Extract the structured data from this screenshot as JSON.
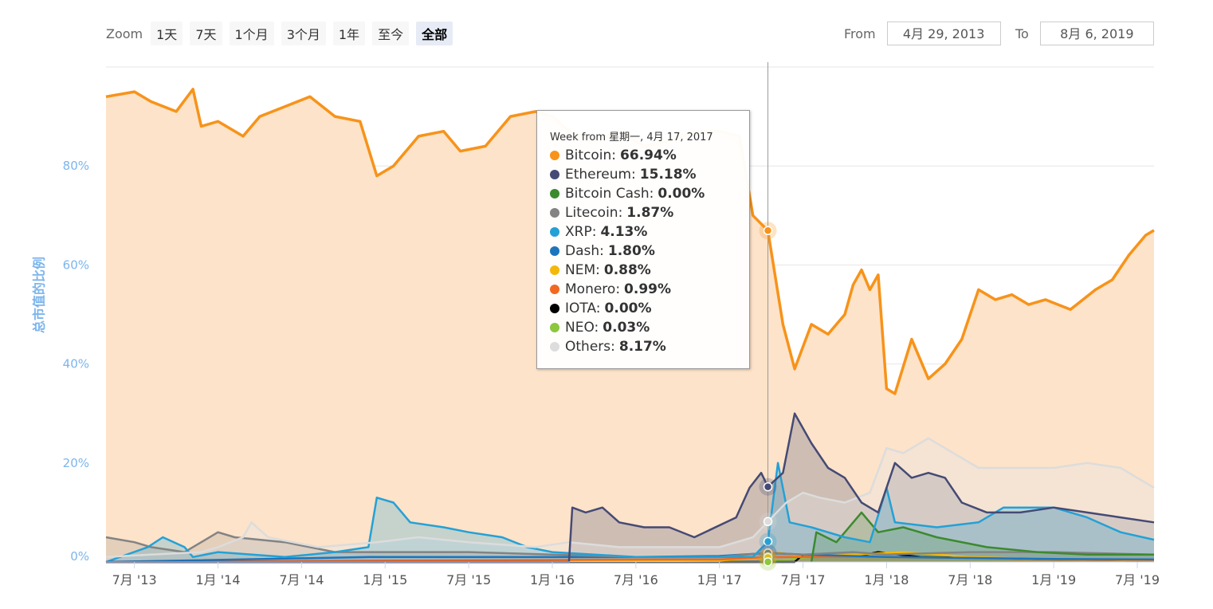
{
  "zoom": {
    "label": "Zoom",
    "buttons": [
      "1天",
      "7天",
      "1个月",
      "3个月",
      "1年",
      "至今",
      "全部"
    ],
    "active_index": 6
  },
  "range": {
    "from_label": "From",
    "from_value": "4月 29, 2013",
    "to_label": "To",
    "to_value": "8月 6, 2019"
  },
  "tooltip": {
    "header": "Week from 星期一, 4月 17, 2017",
    "items": [
      {
        "name": "Bitcoin",
        "value": "66.94%",
        "color": "#f7931a"
      },
      {
        "name": "Ethereum",
        "value": "15.18%",
        "color": "#454a75"
      },
      {
        "name": "Bitcoin Cash",
        "value": "0.00%",
        "color": "#3c8a2e"
      },
      {
        "name": "Litecoin",
        "value": "1.87%",
        "color": "#838383"
      },
      {
        "name": "XRP",
        "value": "4.13%",
        "color": "#23a1d6"
      },
      {
        "name": "Dash",
        "value": "1.80%",
        "color": "#1c75bc"
      },
      {
        "name": "NEM",
        "value": "0.88%",
        "color": "#f4b80b"
      },
      {
        "name": "Monero",
        "value": "0.99%",
        "color": "#f26822"
      },
      {
        "name": "IOTA",
        "value": "0.00%",
        "color": "#000000"
      },
      {
        "name": "NEO",
        "value": "0.03%",
        "color": "#8dc63f"
      },
      {
        "name": "Others",
        "value": "8.17%",
        "color": "#dddddd"
      }
    ]
  },
  "chart_data": {
    "type": "area",
    "ylabel": "总市值的比例",
    "ylim": [
      0,
      100
    ],
    "yticks": [
      0,
      20,
      40,
      60,
      80
    ],
    "ytick_labels": [
      "0%",
      "20%",
      "40%",
      "60%",
      "80%"
    ],
    "xlim": [
      2013.33,
      2019.6
    ],
    "xticks": [
      2013.5,
      2014.0,
      2014.5,
      2015.0,
      2015.5,
      2016.0,
      2016.5,
      2017.0,
      2017.5,
      2018.0,
      2018.5,
      2019.0,
      2019.5
    ],
    "xtick_labels": [
      "7月 '13",
      "1月 '14",
      "7月 '14",
      "1月 '15",
      "7月 '15",
      "1月 '16",
      "7月 '16",
      "1月 '17",
      "7月 '17",
      "1月 '18",
      "7月 '18",
      "1月 '19",
      "7月 '19"
    ],
    "crosshair_x": 2017.29,
    "grid": true,
    "series": [
      {
        "name": "Bitcoin",
        "color": "#f7931a",
        "fill": "#fde3c9",
        "points": [
          [
            2013.33,
            94
          ],
          [
            2013.5,
            95
          ],
          [
            2013.6,
            93
          ],
          [
            2013.75,
            91
          ],
          [
            2013.85,
            95.5
          ],
          [
            2013.9,
            88
          ],
          [
            2014.0,
            89
          ],
          [
            2014.15,
            86
          ],
          [
            2014.25,
            90
          ],
          [
            2014.4,
            92
          ],
          [
            2014.55,
            94
          ],
          [
            2014.7,
            90
          ],
          [
            2014.85,
            89
          ],
          [
            2014.95,
            78
          ],
          [
            2015.05,
            80
          ],
          [
            2015.1,
            82
          ],
          [
            2015.2,
            86
          ],
          [
            2015.35,
            87
          ],
          [
            2015.45,
            83
          ],
          [
            2015.6,
            84
          ],
          [
            2015.75,
            90
          ],
          [
            2015.9,
            91
          ],
          [
            2016.0,
            90
          ],
          [
            2016.1,
            87
          ],
          [
            2016.25,
            85
          ],
          [
            2016.4,
            87
          ],
          [
            2016.55,
            84
          ],
          [
            2016.7,
            85
          ],
          [
            2016.85,
            87
          ],
          [
            2017.0,
            87
          ],
          [
            2017.12,
            86
          ],
          [
            2017.2,
            70
          ],
          [
            2017.29,
            66.94
          ],
          [
            2017.38,
            48
          ],
          [
            2017.45,
            39
          ],
          [
            2017.55,
            48
          ],
          [
            2017.65,
            46
          ],
          [
            2017.75,
            50
          ],
          [
            2017.8,
            56
          ],
          [
            2017.85,
            59
          ],
          [
            2017.9,
            55
          ],
          [
            2017.95,
            58
          ],
          [
            2018.0,
            35
          ],
          [
            2018.05,
            34
          ],
          [
            2018.15,
            45
          ],
          [
            2018.25,
            37
          ],
          [
            2018.35,
            40
          ],
          [
            2018.45,
            45
          ],
          [
            2018.55,
            55
          ],
          [
            2018.65,
            53
          ],
          [
            2018.75,
            54
          ],
          [
            2018.85,
            52
          ],
          [
            2018.95,
            53
          ],
          [
            2019.1,
            51
          ],
          [
            2019.25,
            55
          ],
          [
            2019.35,
            57
          ],
          [
            2019.45,
            62
          ],
          [
            2019.55,
            66
          ],
          [
            2019.6,
            67
          ]
        ]
      },
      {
        "name": "Ethereum",
        "color": "#454a75",
        "fill": "rgba(69,74,117,0.25)",
        "points": [
          [
            2013.33,
            0
          ],
          [
            2016.1,
            0
          ],
          [
            2016.12,
            11
          ],
          [
            2016.2,
            10
          ],
          [
            2016.3,
            11
          ],
          [
            2016.4,
            8
          ],
          [
            2016.55,
            7
          ],
          [
            2016.7,
            7
          ],
          [
            2016.85,
            5
          ],
          [
            2017.1,
            9
          ],
          [
            2017.18,
            15
          ],
          [
            2017.25,
            18
          ],
          [
            2017.29,
            15.18
          ],
          [
            2017.38,
            18
          ],
          [
            2017.45,
            30
          ],
          [
            2017.55,
            24
          ],
          [
            2017.65,
            19
          ],
          [
            2017.75,
            17
          ],
          [
            2017.85,
            12
          ],
          [
            2017.95,
            10
          ],
          [
            2018.05,
            20
          ],
          [
            2018.15,
            17
          ],
          [
            2018.25,
            18
          ],
          [
            2018.35,
            17
          ],
          [
            2018.45,
            12
          ],
          [
            2018.6,
            10
          ],
          [
            2018.8,
            10
          ],
          [
            2019.0,
            11
          ],
          [
            2019.2,
            10
          ],
          [
            2019.4,
            9
          ],
          [
            2019.6,
            8
          ]
        ]
      },
      {
        "name": "Others",
        "color": "#dcdcdc",
        "fill": "rgba(230,230,230,0.35)",
        "points": [
          [
            2013.33,
            1
          ],
          [
            2013.6,
            1.5
          ],
          [
            2013.9,
            2
          ],
          [
            2014.0,
            3
          ],
          [
            2014.15,
            5
          ],
          [
            2014.2,
            8
          ],
          [
            2014.3,
            5
          ],
          [
            2014.6,
            3
          ],
          [
            2014.95,
            4
          ],
          [
            2015.2,
            5
          ],
          [
            2015.5,
            4
          ],
          [
            2015.9,
            3
          ],
          [
            2016.1,
            4
          ],
          [
            2016.4,
            3
          ],
          [
            2016.7,
            3
          ],
          [
            2017.0,
            3
          ],
          [
            2017.2,
            5
          ],
          [
            2017.29,
            8.17
          ],
          [
            2017.4,
            12
          ],
          [
            2017.5,
            14
          ],
          [
            2017.6,
            13
          ],
          [
            2017.75,
            12
          ],
          [
            2017.9,
            14
          ],
          [
            2018.0,
            23
          ],
          [
            2018.1,
            22
          ],
          [
            2018.25,
            25
          ],
          [
            2018.4,
            22
          ],
          [
            2018.55,
            19
          ],
          [
            2018.75,
            19
          ],
          [
            2019.0,
            19
          ],
          [
            2019.2,
            20
          ],
          [
            2019.4,
            19
          ],
          [
            2019.6,
            15
          ]
        ]
      },
      {
        "name": "XRP",
        "color": "#23a1d6",
        "fill": "rgba(35,161,214,0.25)",
        "points": [
          [
            2013.33,
            0
          ],
          [
            2013.58,
            3
          ],
          [
            2013.67,
            5
          ],
          [
            2013.8,
            3
          ],
          [
            2013.85,
            1
          ],
          [
            2014.0,
            2
          ],
          [
            2014.4,
            1
          ],
          [
            2014.7,
            2
          ],
          [
            2014.9,
            3
          ],
          [
            2014.95,
            13
          ],
          [
            2015.05,
            12
          ],
          [
            2015.15,
            8
          ],
          [
            2015.35,
            7
          ],
          [
            2015.5,
            6
          ],
          [
            2015.7,
            5
          ],
          [
            2015.85,
            3
          ],
          [
            2016.0,
            2
          ],
          [
            2016.5,
            1
          ],
          [
            2017.0,
            1
          ],
          [
            2017.2,
            1
          ],
          [
            2017.29,
            4.13
          ],
          [
            2017.35,
            20
          ],
          [
            2017.42,
            8
          ],
          [
            2017.55,
            7
          ],
          [
            2017.75,
            5
          ],
          [
            2017.9,
            4
          ],
          [
            2018.0,
            15
          ],
          [
            2018.05,
            8
          ],
          [
            2018.3,
            7
          ],
          [
            2018.55,
            8
          ],
          [
            2018.7,
            11
          ],
          [
            2019.0,
            11
          ],
          [
            2019.2,
            9
          ],
          [
            2019.4,
            6
          ],
          [
            2019.6,
            4.5
          ]
        ]
      },
      {
        "name": "Bitcoin Cash",
        "color": "#3c8a2e",
        "fill": "rgba(60,138,46,0.2)",
        "points": [
          [
            2017.55,
            0
          ],
          [
            2017.58,
            6
          ],
          [
            2017.7,
            4
          ],
          [
            2017.85,
            10
          ],
          [
            2017.95,
            6
          ],
          [
            2018.1,
            7
          ],
          [
            2018.3,
            5
          ],
          [
            2018.6,
            3
          ],
          [
            2018.9,
            2
          ],
          [
            2019.2,
            1.5
          ],
          [
            2019.6,
            1.5
          ]
        ]
      },
      {
        "name": "Litecoin",
        "color": "#838383",
        "fill": "rgba(131,131,131,0.2)",
        "points": [
          [
            2013.33,
            5
          ],
          [
            2013.5,
            4
          ],
          [
            2013.6,
            3
          ],
          [
            2013.8,
            2
          ],
          [
            2014.0,
            6
          ],
          [
            2014.1,
            5
          ],
          [
            2014.4,
            4
          ],
          [
            2014.7,
            2
          ],
          [
            2015.0,
            2
          ],
          [
            2015.5,
            2
          ],
          [
            2016.0,
            1.5
          ],
          [
            2016.5,
            1
          ],
          [
            2017.0,
            1
          ],
          [
            2017.29,
            1.87
          ],
          [
            2017.5,
            1.5
          ],
          [
            2017.8,
            2
          ],
          [
            2018.0,
            1.5
          ],
          [
            2018.5,
            2
          ],
          [
            2019.0,
            2
          ],
          [
            2019.6,
            1.5
          ]
        ]
      },
      {
        "name": "Dash",
        "color": "#1c75bc",
        "fill": "rgba(28,117,188,0.15)",
        "points": [
          [
            2013.33,
            0
          ],
          [
            2014.9,
            1
          ],
          [
            2015.5,
            1
          ],
          [
            2016.0,
            1
          ],
          [
            2016.5,
            1
          ],
          [
            2017.0,
            1.2
          ],
          [
            2017.29,
            1.8
          ],
          [
            2017.5,
            1.5
          ],
          [
            2018.0,
            1
          ],
          [
            2018.5,
            0.8
          ],
          [
            2019.0,
            0.6
          ],
          [
            2019.6,
            0.5
          ]
        ]
      },
      {
        "name": "Monero",
        "color": "#f26822",
        "fill": "rgba(242,104,34,0.15)",
        "points": [
          [
            2013.33,
            0
          ],
          [
            2016.6,
            0.5
          ],
          [
            2017.0,
            0.5
          ],
          [
            2017.29,
            0.99
          ],
          [
            2017.6,
            1
          ],
          [
            2018.0,
            1
          ],
          [
            2018.5,
            0.8
          ],
          [
            2019.0,
            0.5
          ],
          [
            2019.6,
            0.4
          ]
        ]
      },
      {
        "name": "NEM",
        "color": "#f4b80b",
        "fill": "rgba(244,184,11,0.15)",
        "points": [
          [
            2013.33,
            0
          ],
          [
            2017.0,
            0.3
          ],
          [
            2017.29,
            0.88
          ],
          [
            2017.35,
            2
          ],
          [
            2017.5,
            1
          ],
          [
            2017.8,
            1.5
          ],
          [
            2018.1,
            2
          ],
          [
            2018.5,
            1
          ],
          [
            2019.0,
            0.5
          ],
          [
            2019.6,
            0.3
          ]
        ]
      },
      {
        "name": "IOTA",
        "color": "#000000",
        "fill": "rgba(0,0,0,0.05)",
        "points": [
          [
            2013.33,
            0
          ],
          [
            2017.45,
            0
          ],
          [
            2017.5,
            1.5
          ],
          [
            2017.8,
            1
          ],
          [
            2017.95,
            2
          ],
          [
            2018.2,
            1
          ],
          [
            2018.6,
            0.8
          ],
          [
            2019.0,
            0.5
          ],
          [
            2019.6,
            0.3
          ]
        ]
      },
      {
        "name": "NEO",
        "color": "#8dc63f",
        "fill": "rgba(141,198,63,0.15)",
        "points": [
          [
            2013.33,
            0
          ],
          [
            2017.2,
            0
          ],
          [
            2017.29,
            0.03
          ],
          [
            2017.55,
            1
          ],
          [
            2017.85,
            1.5
          ],
          [
            2018.05,
            2
          ],
          [
            2018.4,
            1
          ],
          [
            2019.0,
            0.5
          ],
          [
            2019.6,
            0.4
          ]
        ]
      }
    ]
  }
}
